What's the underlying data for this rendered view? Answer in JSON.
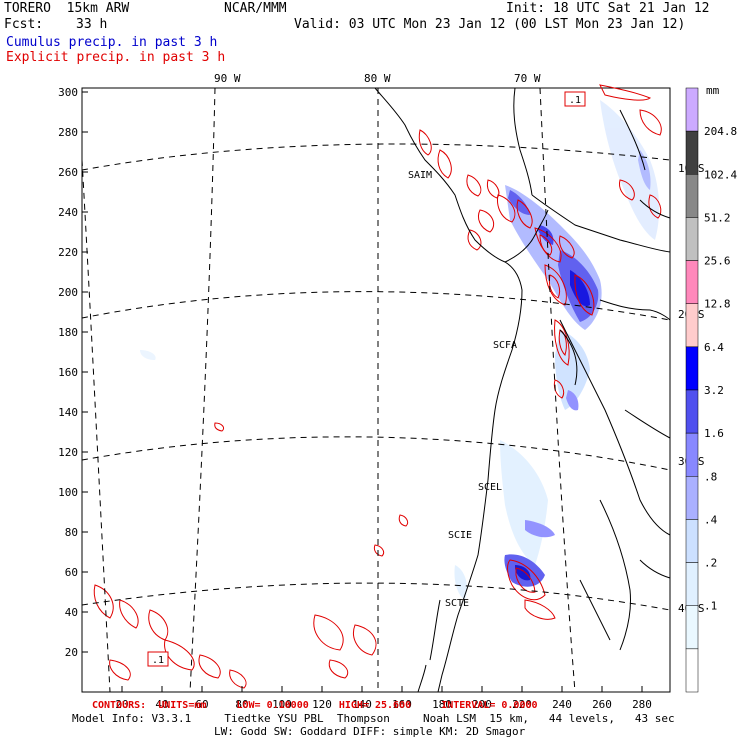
{
  "header": {
    "model": "TORERO  15km ARW",
    "org": "NCAR/MMM",
    "init": "Init: 18 UTC Sat 21 Jan 12",
    "fcst_label": "Fcst:",
    "fcst_value": "33 h",
    "valid": "Valid: 03 UTC Mon 23 Jan 12 (00 LST Mon 23 Jan 12)",
    "cumulus_title": "Cumulus precip. in past 3 h",
    "explicit_title": "Explicit precip. in past 3 h"
  },
  "colors": {
    "cumulus": "#0000cc",
    "explicit": "#e00000"
  },
  "axes": {
    "top_lon_labels": [
      "90 W",
      "80 W",
      "70 W"
    ],
    "left_ticks": [
      "20",
      "40",
      "60",
      "80",
      "100",
      "120",
      "140",
      "160",
      "180",
      "200",
      "220",
      "240",
      "260",
      "280",
      "300"
    ],
    "bottom_ticks": [
      "20",
      "40",
      "60",
      "80",
      "100",
      "120",
      "140",
      "160",
      "180",
      "200",
      "220",
      "240",
      "260",
      "280"
    ],
    "right_lat_labels": [
      "10 S",
      "20 S",
      "30 S",
      "40 S"
    ]
  },
  "station_labels": [
    "SAIM",
    "SCFA",
    "SCEL",
    "SCIE",
    "SCTE"
  ],
  "box_labels": [
    ".1",
    ".1"
  ],
  "colorbar": {
    "unit": "mm",
    "levels": [
      "204.8",
      "102.4",
      "51.2",
      "25.6",
      "12.8",
      "6.4",
      "3.2",
      "1.6",
      ".8",
      ".4",
      ".2",
      ".1"
    ],
    "colors": [
      "#ccaaff",
      "#404040",
      "#888888",
      "#c0c0c0",
      "#ff88bb",
      "#ffcccc",
      "#0000ff",
      "#5050ee",
      "#8888ff",
      "#aab0ff",
      "#cce0ff",
      "#e0f0ff",
      "#eaf8ff",
      "#ffffff"
    ]
  },
  "footer": {
    "contours": "CONTOURS:  UNITS=mm     LOW= 0.10000     HIGH= 25.600     INTERVAL= 0.0000",
    "model_info": "Model Info: V3.3.1     Tiedtke YSU PBL  Thompson     Noah LSM  15 km,   44 levels,   43 sec",
    "model_info2": "LW: Godd SW: Goddard DIFF: simple KM: 2D Smagor"
  }
}
